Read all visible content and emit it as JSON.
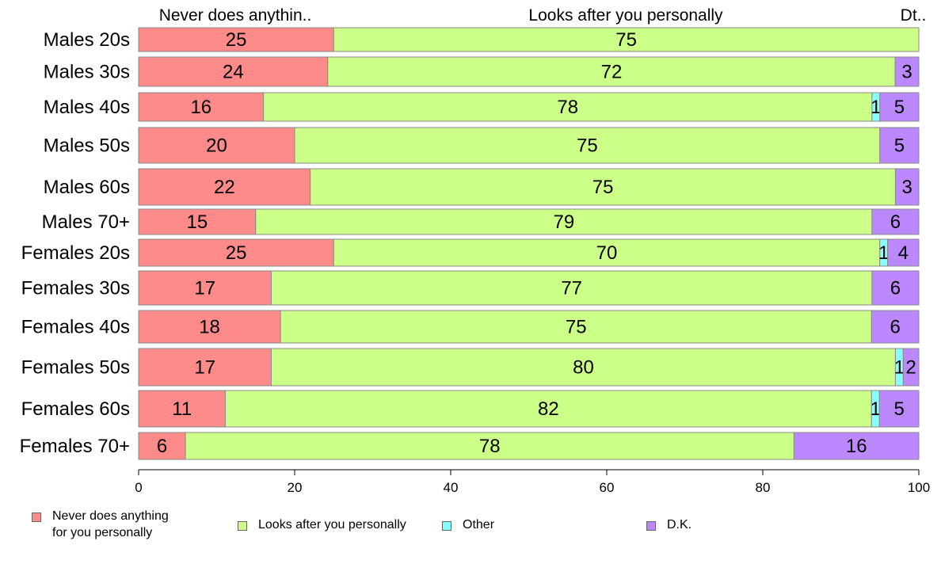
{
  "chart_data": {
    "type": "bar",
    "orientation": "horizontal",
    "stacked": true,
    "normalized_percent": true,
    "categories": [
      "Males 20s",
      "Males 30s",
      "Males 40s",
      "Males 50s",
      "Males 60s",
      "Males 70+",
      "Females 20s",
      "Females 30s",
      "Females 40s",
      "Females 50s",
      "Females 60s",
      "Females 70+"
    ],
    "series": [
      {
        "name": "Never does anything\nfor you personally",
        "color": "#ff8a8a",
        "values": [
          25,
          24,
          16,
          20,
          22,
          15,
          25,
          17,
          18,
          17,
          11,
          6
        ],
        "labels": [
          "25",
          "24",
          "16",
          "20",
          "22",
          "15",
          "25",
          "17",
          "18",
          "17",
          "11",
          "6"
        ]
      },
      {
        "name": "Looks after you personally",
        "color": "#ccff88",
        "values": [
          75,
          72,
          78,
          75,
          75,
          79,
          70,
          77,
          75,
          80,
          82,
          78
        ],
        "labels": [
          "75",
          "72",
          "78",
          "75",
          "75",
          "79",
          "70",
          "77",
          "75",
          "80",
          "82",
          "78"
        ]
      },
      {
        "name": "Other",
        "color": "#88ffff",
        "values": [
          0,
          0,
          1,
          0,
          0,
          0,
          1,
          0,
          0,
          1,
          1,
          0
        ],
        "labels": [
          "",
          "",
          "1",
          "",
          "",
          "",
          "1",
          "",
          "",
          "1",
          "1",
          ""
        ]
      },
      {
        "name": "D.K.",
        "color": "#bb88ff",
        "values": [
          0,
          3,
          5,
          5,
          3,
          6,
          4,
          6,
          6,
          2,
          5,
          16
        ],
        "labels": [
          "",
          "3",
          "5",
          "5",
          "3",
          "6",
          "4",
          "6",
          "6",
          "2",
          "5",
          "16"
        ]
      }
    ],
    "top_labels": [
      "Never does anythin..",
      "Looks after you personally",
      "Dt.."
    ],
    "xlim": [
      0,
      100
    ],
    "xticks": [
      "0",
      "20",
      "40",
      "60",
      "80",
      "100"
    ],
    "grid": false,
    "legend_position": "bottom"
  }
}
